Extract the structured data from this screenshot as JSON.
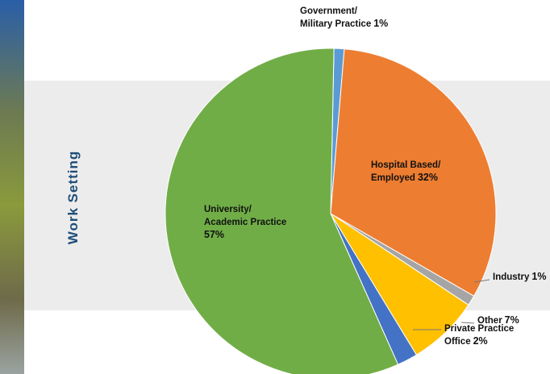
{
  "chart_data": {
    "type": "pie",
    "title": "Work Setting",
    "categories": [
      [
        "Government/",
        "Military Practice"
      ],
      [
        "Hospital Based/",
        "Employed"
      ],
      [
        "Industry"
      ],
      [
        "Other"
      ],
      [
        "Private Practice",
        "Office"
      ],
      [
        "University/",
        "Academic Practice"
      ]
    ],
    "values": [
      1,
      32,
      1,
      7,
      2,
      57
    ],
    "value_labels": [
      "1%",
      "32%",
      "1%",
      "7%",
      "2%",
      "57%"
    ],
    "colors": [
      "#5b9bd5",
      "#ed7d31",
      "#a5a5a5",
      "#ffc000",
      "#4472c4",
      "#70ad47"
    ]
  }
}
